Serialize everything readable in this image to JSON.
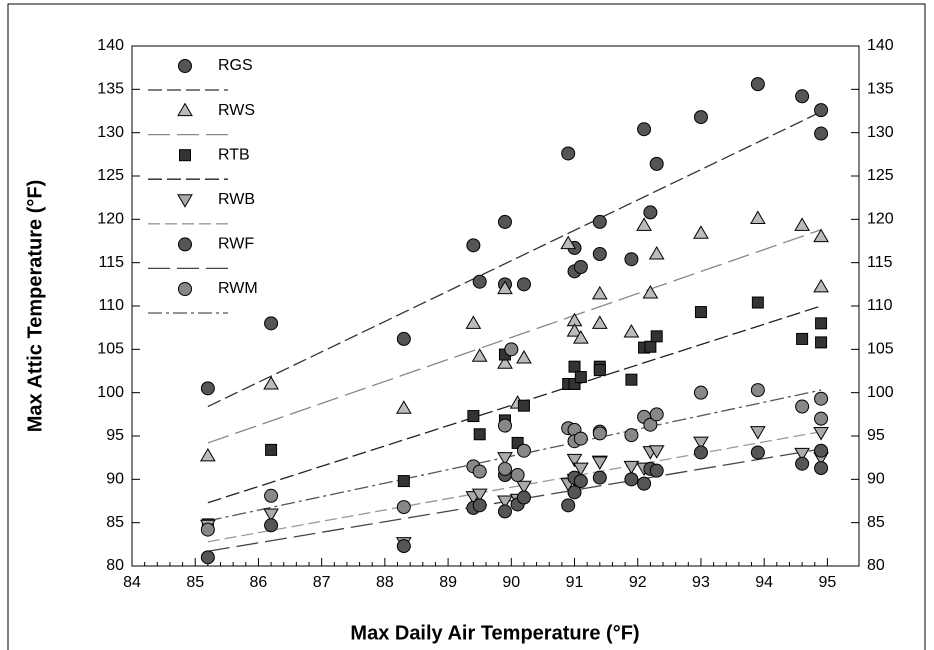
{
  "chart_data": {
    "type": "scatter",
    "xlabel": "Max Daily Air Temperature (°F)",
    "ylabel": "Max Attic Temperature (°F)",
    "xlim": [
      84,
      95.5
    ],
    "xticks": [
      84,
      85,
      86,
      87,
      88,
      89,
      90,
      91,
      92,
      93,
      94,
      95
    ],
    "x_minor_ticks": 5,
    "ylim": [
      80,
      140
    ],
    "yticks": [
      80,
      85,
      90,
      95,
      100,
      105,
      110,
      115,
      120,
      125,
      130,
      135,
      140
    ],
    "y2lim": [
      80,
      140
    ],
    "y2ticks": [
      80,
      85,
      90,
      95,
      100,
      105,
      110,
      115,
      120,
      125,
      130,
      135,
      140
    ],
    "legend": "upper left",
    "series": [
      {
        "name": "RGS",
        "marker": "circle",
        "color": "#555555",
        "line_color": "#333333",
        "dash": "14,5",
        "x": [
          85.2,
          86.2,
          88.3,
          89.4,
          89.5,
          89.9,
          89.9,
          90.2,
          90.9,
          91.0,
          91.0,
          91.1,
          91.4,
          91.4,
          91.9,
          92.1,
          92.2,
          92.3,
          93.0,
          93.9,
          94.6,
          94.9,
          94.9
        ],
        "y": [
          100.5,
          108,
          106.2,
          117,
          112.8,
          119.7,
          112.5,
          112.5,
          127.6,
          116.7,
          114,
          114.5,
          119.7,
          116,
          115.4,
          130.4,
          120.8,
          126.4,
          131.8,
          135.6,
          134.2,
          132.6,
          129.9
        ],
        "trend": {
          "x": [
            85.2,
            94.9
          ],
          "y": [
            98.4,
            132.4
          ]
        }
      },
      {
        "name": "RWS",
        "marker": "triangle",
        "color": "#bbbbbb",
        "line_color": "#888888",
        "dash": "22,7",
        "x": [
          85.2,
          86.2,
          88.3,
          89.4,
          89.5,
          89.9,
          89.9,
          90.1,
          90.2,
          90.9,
          91.0,
          91.0,
          91.1,
          91.4,
          91.4,
          91.9,
          92.1,
          92.2,
          92.3,
          93.0,
          93.9,
          94.6,
          94.9,
          94.9
        ],
        "y": [
          92.7,
          101,
          98.2,
          108,
          104.2,
          112,
          103.4,
          98.8,
          104,
          117.2,
          108.3,
          107.1,
          106.3,
          111.4,
          108,
          107,
          119.3,
          111.5,
          116,
          118.4,
          120.1,
          119.3,
          118,
          112.2
        ],
        "trend": {
          "x": [
            85.2,
            94.9
          ],
          "y": [
            94.2,
            118.8
          ]
        }
      },
      {
        "name": "RTB",
        "marker": "square",
        "color": "#333333",
        "line_color": "#222222",
        "dash": "14,5",
        "x": [
          85.2,
          86.2,
          88.3,
          89.4,
          89.5,
          89.9,
          89.9,
          90.1,
          90.2,
          90.9,
          91.0,
          91.0,
          91.1,
          91.4,
          91.4,
          91.9,
          92.1,
          92.2,
          92.3,
          93.0,
          93.9,
          94.6,
          94.9,
          94.9
        ],
        "y": [
          84.8,
          93.4,
          89.8,
          97.3,
          95.2,
          104.4,
          96.8,
          94.2,
          98.5,
          101,
          103,
          101,
          101.8,
          103,
          102.6,
          101.5,
          105.2,
          105.3,
          106.5,
          109.3,
          110.4,
          106.2,
          108,
          105.8
        ],
        "trend": {
          "x": [
            85.2,
            94.9
          ],
          "y": [
            87.3,
            110
          ]
        }
      },
      {
        "name": "RWB",
        "marker": "triangle-down",
        "color": "#aaaaaa",
        "line_color": "#999999",
        "dash": "12,5",
        "x": [
          85.2,
          86.2,
          88.3,
          89.4,
          89.5,
          89.9,
          89.9,
          90.1,
          90.2,
          90.9,
          91.0,
          91.0,
          91.1,
          91.4,
          91.4,
          91.9,
          92.1,
          92.2,
          92.3,
          93.0,
          93.9,
          94.6,
          94.9,
          94.9
        ],
        "y": [
          84.7,
          86,
          82.7,
          88,
          88.3,
          92.5,
          87.5,
          87.7,
          89.2,
          89.5,
          92.3,
          90,
          91.3,
          92.1,
          92,
          91.5,
          91.3,
          93.2,
          93.3,
          94.3,
          95.5,
          93,
          95.4,
          92.5
        ],
        "trend": {
          "x": [
            85.2,
            94.9
          ],
          "y": [
            82.8,
            95.5
          ]
        }
      },
      {
        "name": "RWF",
        "marker": "circle",
        "color": "#555555",
        "line_color": "#444444",
        "dash": "22,7",
        "x": [
          85.2,
          86.2,
          88.3,
          89.4,
          89.5,
          89.9,
          89.9,
          90.1,
          90.2,
          90.9,
          91.0,
          91.0,
          91.1,
          91.4,
          91.9,
          92.1,
          92.2,
          92.3,
          93.0,
          93.9,
          94.6,
          94.9,
          94.9
        ],
        "y": [
          81,
          84.7,
          82.3,
          86.7,
          87,
          86.3,
          90.5,
          87.1,
          87.9,
          87,
          88.5,
          90.2,
          89.8,
          90.2,
          90,
          89.5,
          91.2,
          91,
          93.1,
          93.1,
          91.8,
          93.3,
          91.3
        ],
        "trend": {
          "x": [
            85.2,
            94.9
          ],
          "y": [
            81.7,
            93.5
          ]
        }
      },
      {
        "name": "RWM",
        "marker": "circle",
        "color": "#888888",
        "line_color": "#555555",
        "dash": "14,4,3,4",
        "x": [
          85.2,
          86.2,
          88.3,
          89.4,
          89.5,
          89.9,
          89.9,
          90.1,
          90.0,
          90.2,
          90.9,
          91.0,
          91.0,
          91.1,
          91.4,
          91.4,
          91.9,
          92.1,
          92.2,
          92.3,
          93.0,
          93.9,
          94.6,
          94.9,
          94.9
        ],
        "y": [
          84.2,
          88.1,
          86.8,
          91.5,
          90.9,
          96.2,
          91.2,
          90.5,
          105,
          93.3,
          95.9,
          95.7,
          94.4,
          94.7,
          95.5,
          95.3,
          95.1,
          97.2,
          96.3,
          97.5,
          100,
          100.3,
          98.4,
          99.3,
          97
        ],
        "trend": {
          "x": [
            85.2,
            94.9
          ],
          "y": [
            85.2,
            100.3
          ]
        }
      }
    ]
  }
}
